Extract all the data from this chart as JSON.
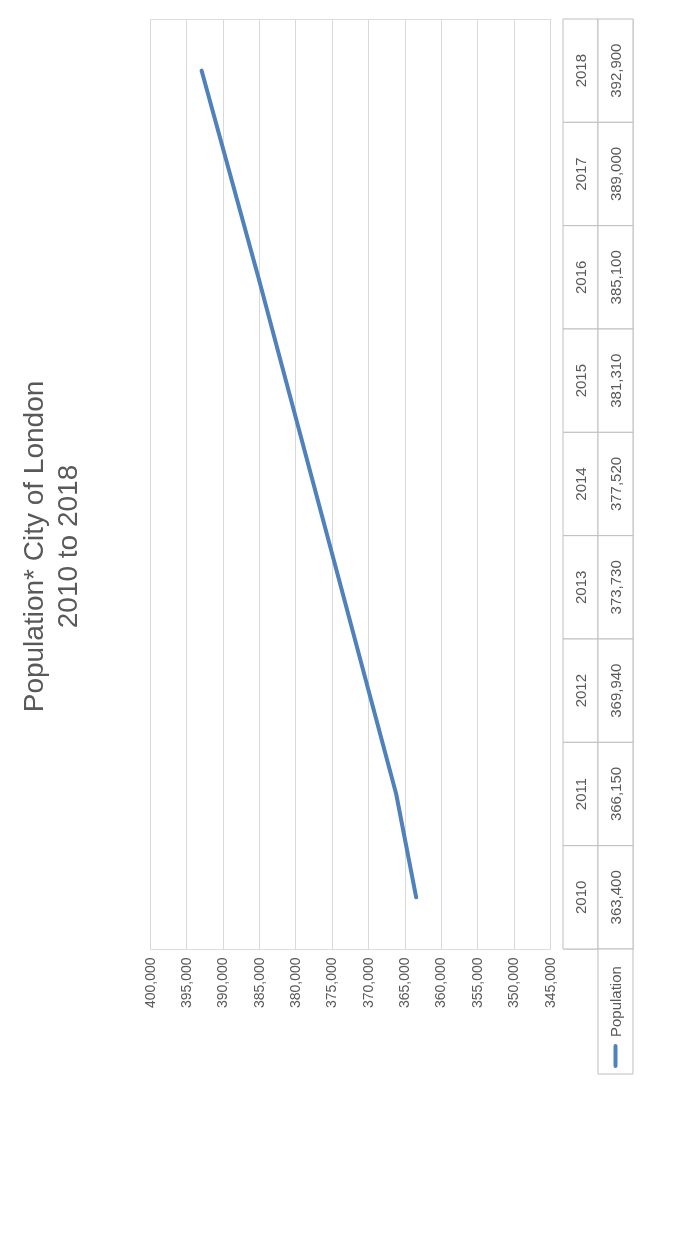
{
  "chart_data": {
    "type": "line",
    "title": "Population* City of London\n2010 to 2018",
    "orientation": "horizontal",
    "categories": [
      "2018",
      "2017",
      "2016",
      "2015",
      "2014",
      "2013",
      "2012",
      "2011",
      "2010"
    ],
    "series": [
      {
        "name": "Population",
        "color": "#4f81bd",
        "values": [
          392900,
          389000,
          385100,
          381310,
          377520,
          373730,
          369940,
          366150,
          363400
        ],
        "value_labels": [
          "392,900",
          "389,000",
          "385,100",
          "381,310",
          "377,520",
          "373,730",
          "369,940",
          "366,150",
          "363,400"
        ]
      }
    ],
    "xlim": [
      400000,
      345000
    ],
    "xticks": [
      {
        "value": 400000,
        "label": "400,000"
      },
      {
        "value": 395000,
        "label": "395,000"
      },
      {
        "value": 390000,
        "label": "390,000"
      },
      {
        "value": 385000,
        "label": "385,000"
      },
      {
        "value": 380000,
        "label": "380,000"
      },
      {
        "value": 375000,
        "label": "375,000"
      },
      {
        "value": 370000,
        "label": "370,000"
      },
      {
        "value": 365000,
        "label": "365,000"
      },
      {
        "value": 360000,
        "label": "360,000"
      },
      {
        "value": 355000,
        "label": "355,000"
      },
      {
        "value": 350000,
        "label": "350,000"
      },
      {
        "value": 345000,
        "label": "345,000"
      }
    ],
    "grid": "x",
    "legend": "bottom",
    "marker": "none",
    "line_style": "solid"
  }
}
